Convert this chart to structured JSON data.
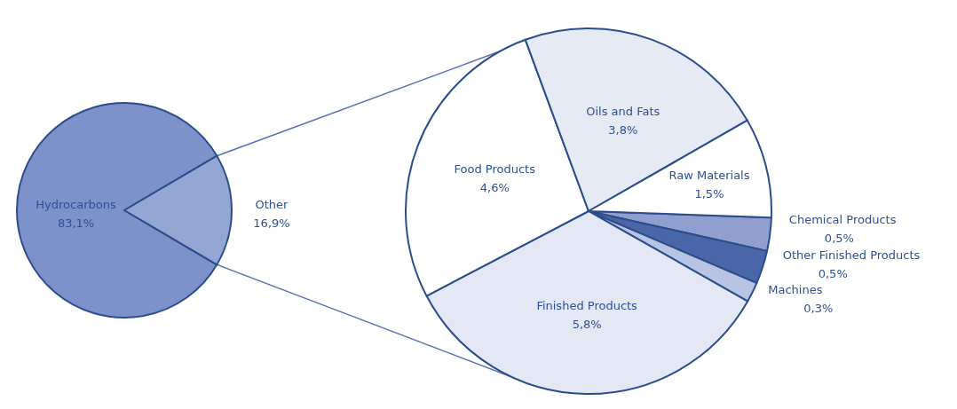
{
  "chart_data": [
    {
      "type": "pie",
      "categories": [
        "Hydrocarbons",
        "Other"
      ],
      "values": [
        83.1,
        16.9
      ],
      "colors": [
        "#7d92cb",
        "#94a6d4"
      ],
      "value_labels": [
        "83,1%",
        "16,9%"
      ]
    },
    {
      "type": "pie",
      "categories": [
        "Chemical Products",
        "Other Finished Products",
        "Machines",
        "Finished Products",
        "Food Products",
        "Oils and Fats",
        "Raw Materials"
      ],
      "values": [
        0.5,
        0.5,
        0.3,
        5.8,
        4.6,
        3.8,
        1.5
      ],
      "colors": [
        "#8fa0d0",
        "#4a66a8",
        "#b8c4e4",
        "#e3e8f4",
        "#ffffff",
        "#e6eaf5",
        "#ffffff"
      ],
      "value_labels": [
        "0,5%",
        "0,5%",
        "0,3%",
        "5,8%",
        "4,6%",
        "3,8%",
        "1,5%"
      ]
    }
  ]
}
